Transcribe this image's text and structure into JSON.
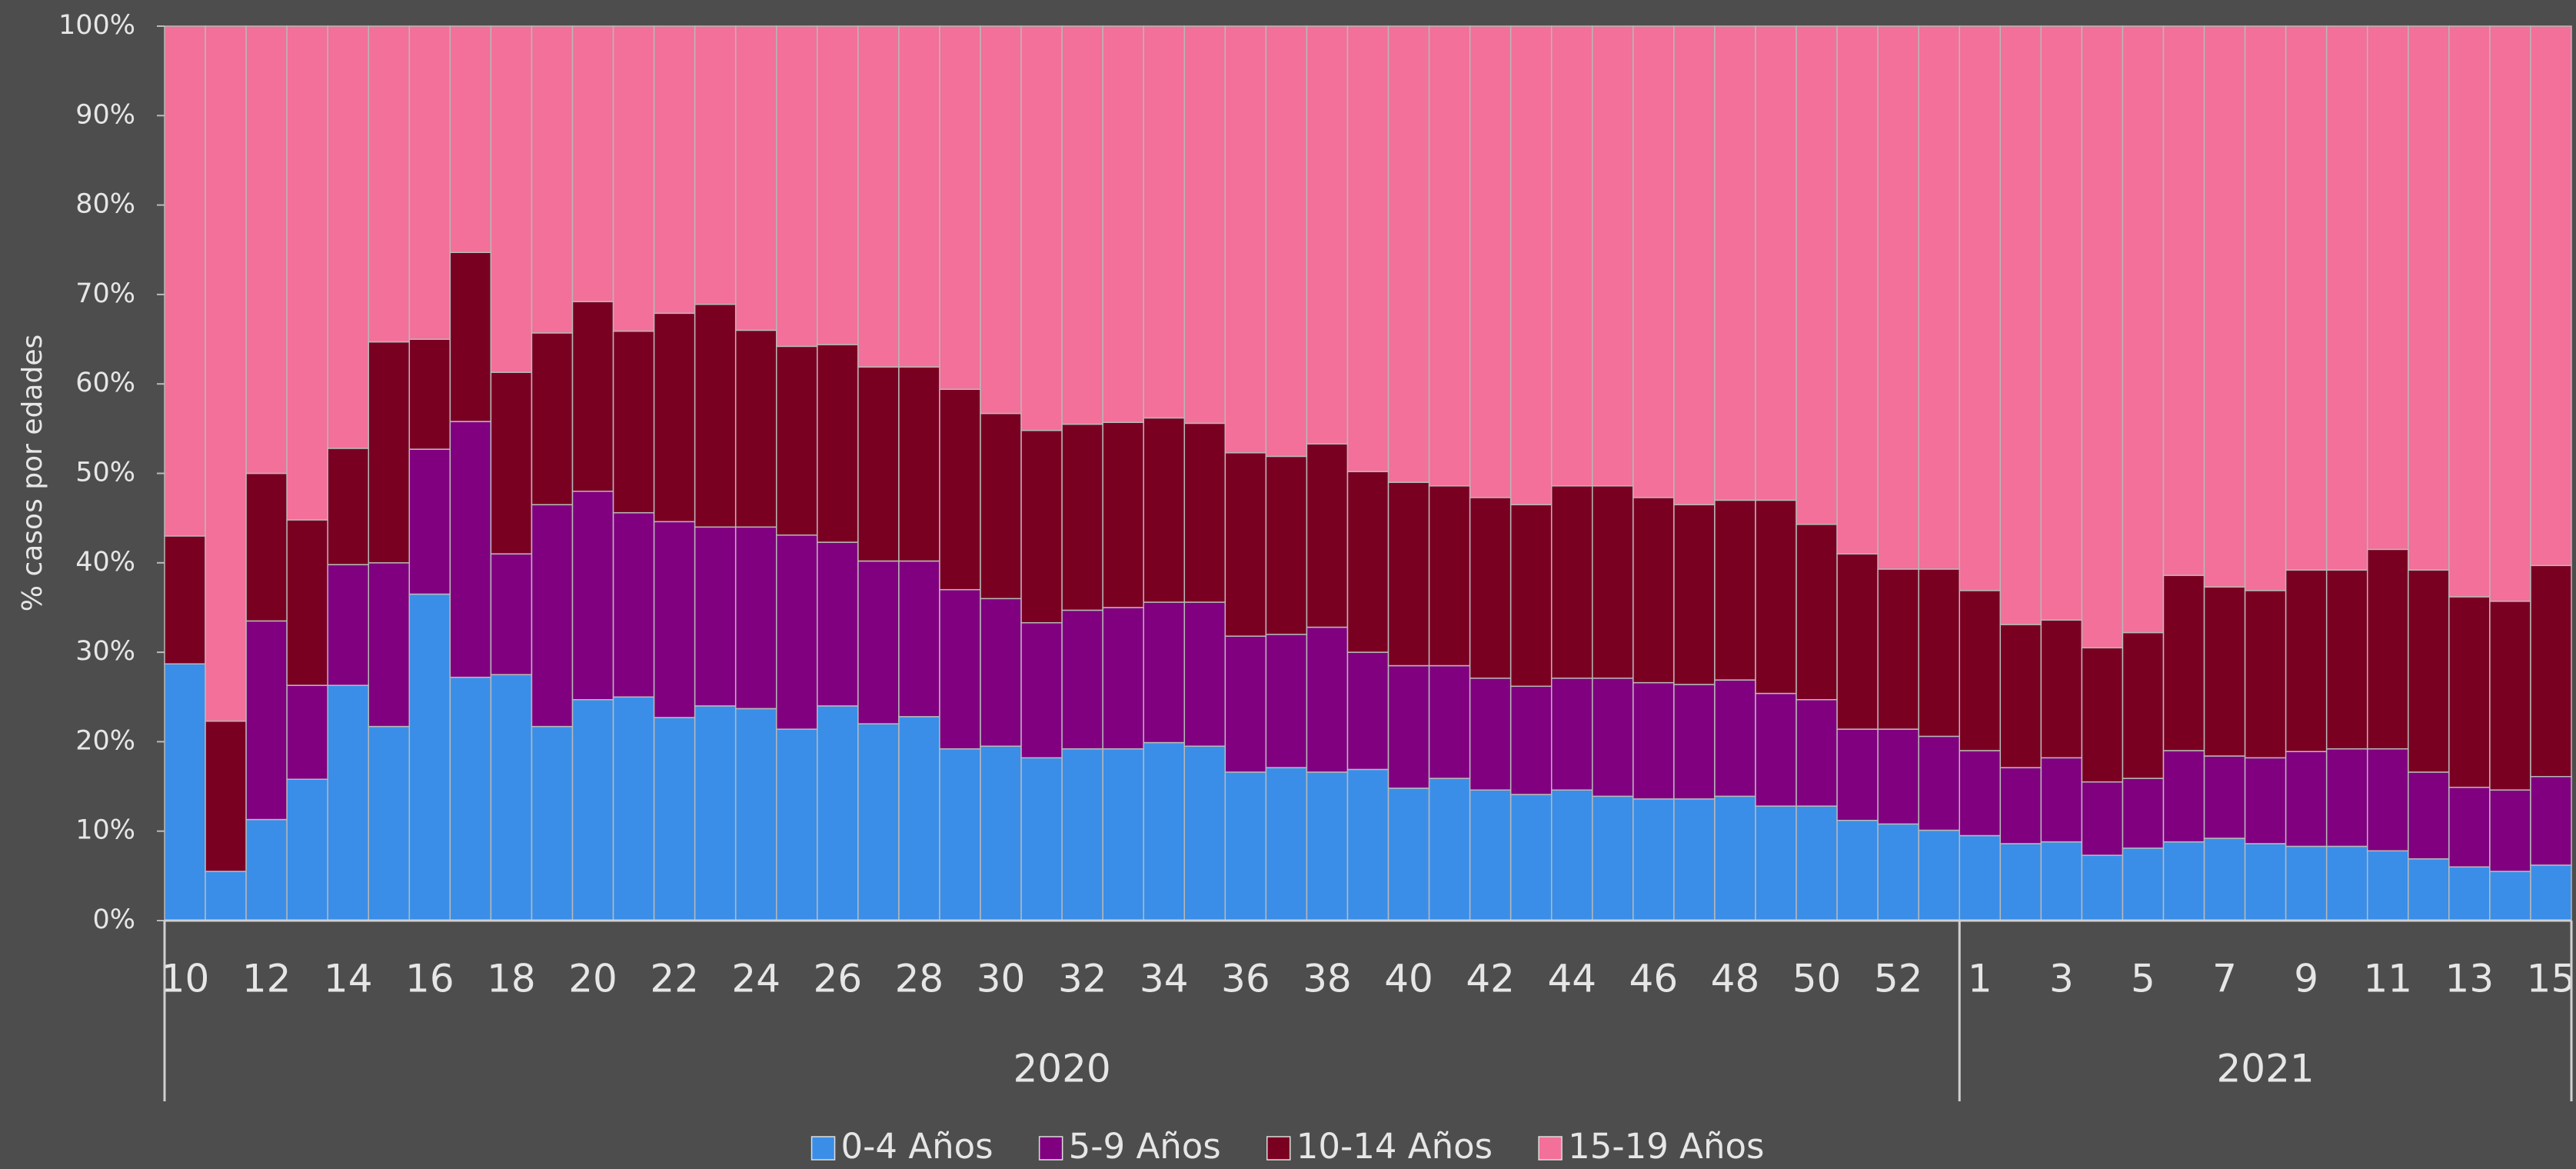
{
  "chart_data": {
    "type": "stacked_bar",
    "ylabel": "% casos por edades",
    "categories": [
      "10",
      null,
      "12",
      null,
      "14",
      null,
      "16",
      null,
      "18",
      null,
      "20",
      null,
      "22",
      null,
      "24",
      null,
      "26",
      null,
      "28",
      null,
      "30",
      null,
      "32",
      null,
      "34",
      null,
      "36",
      null,
      "38",
      null,
      "40",
      null,
      "42",
      null,
      "44",
      null,
      "46",
      null,
      "48",
      null,
      "50",
      null,
      "52",
      null,
      "1",
      null,
      "3",
      null,
      "5",
      null,
      "7",
      null,
      "9",
      null,
      "11",
      null,
      "13",
      null,
      "15"
    ],
    "groups": [
      {
        "label": "2020",
        "count": 44
      },
      {
        "label": "2021",
        "count": 15
      }
    ],
    "series": [
      {
        "name": "0-4 Años",
        "color": "#3a8ee8",
        "values": [
          28.7,
          5.5,
          11.3,
          15.8,
          26.3,
          21.7,
          36.5,
          27.2,
          27.5,
          21.7,
          24.7,
          25,
          22.7,
          24,
          23.7,
          21.4,
          24,
          22,
          22.8,
          19.2,
          19.5,
          18.2,
          19.2,
          19.2,
          19.9,
          19.5,
          16.6,
          17.1,
          16.6,
          16.9,
          14.8,
          15.9,
          14.6,
          14.1,
          14.6,
          13.9,
          13.6,
          13.6,
          13.9,
          12.8,
          12.8,
          11.2,
          10.8,
          10.1,
          9.5,
          8.6,
          8.8,
          7.3,
          8.1,
          8.8,
          9.2,
          8.6,
          8.3,
          8.3,
          7.8,
          6.9,
          6,
          5.5,
          6.2
        ]
      },
      {
        "name": "5-9 Años",
        "color": "#800080",
        "values": [
          0,
          0,
          22.2,
          10.5,
          13.5,
          18.3,
          16.2,
          28.6,
          13.5,
          24.8,
          23.3,
          20.6,
          21.9,
          20,
          20.3,
          21.7,
          18.3,
          18.2,
          17.4,
          17.8,
          16.5,
          15.1,
          15.5,
          15.8,
          15.7,
          16.1,
          15.2,
          14.9,
          16.2,
          13.1,
          13.7,
          12.6,
          12.5,
          12.1,
          12.5,
          13.2,
          13,
          12.8,
          13,
          12.6,
          11.9,
          10.2,
          10.6,
          10.5,
          9.5,
          8.5,
          9.4,
          8.2,
          7.8,
          10.2,
          9.2,
          9.6,
          10.6,
          10.9,
          11.4,
          9.7,
          8.9,
          9.1,
          9.9
        ]
      },
      {
        "name": "10-14 Años",
        "color": "#7a0022",
        "values": [
          14.3,
          16.8,
          16.5,
          18.5,
          13,
          24.7,
          12.3,
          18.9,
          20.3,
          19.2,
          21.2,
          20.3,
          23.3,
          24.9,
          22,
          21.1,
          22.1,
          21.7,
          21.7,
          22.4,
          20.7,
          21.5,
          20.8,
          20.7,
          20.6,
          20,
          20.5,
          19.9,
          20.5,
          20.2,
          20.5,
          20.1,
          20.2,
          20.3,
          21.5,
          21.5,
          20.7,
          20.1,
          20.1,
          21.6,
          19.6,
          19.6,
          17.9,
          18.7,
          17.9,
          16,
          15.4,
          15,
          16.3,
          19.6,
          18.9,
          18.7,
          20.3,
          20,
          22.3,
          22.6,
          21.3,
          21.1,
          23.6
        ]
      },
      {
        "name": "15-19 Años",
        "color": "#f27099",
        "values": [
          57,
          77.7,
          50,
          55.2,
          47.2,
          35.3,
          35,
          25.3,
          38.7,
          34.3,
          30.8,
          34.1,
          32.1,
          31.1,
          34,
          35.8,
          35.6,
          38.1,
          38.1,
          40.6,
          43.3,
          45.2,
          44.5,
          44.3,
          43.8,
          44.4,
          47.7,
          48.1,
          46.7,
          49.8,
          51,
          51.4,
          52.7,
          53.5,
          51.4,
          51.4,
          52.7,
          53.5,
          53,
          53,
          55.7,
          59,
          60.7,
          60.7,
          63.1,
          66.9,
          66.4,
          69.5,
          67.8,
          61.4,
          62.7,
          63.1,
          60.8,
          60.8,
          58.5,
          60.8,
          63.8,
          64.3,
          60.3
        ]
      }
    ],
    "ylim": [
      0,
      100
    ],
    "yticks": [
      {
        "value": 0,
        "label": "0%"
      },
      {
        "value": 10,
        "label": "10%"
      },
      {
        "value": 20,
        "label": "20%"
      },
      {
        "value": 30,
        "label": "30%"
      },
      {
        "value": 40,
        "label": "40%"
      },
      {
        "value": 50,
        "label": "50%"
      },
      {
        "value": 60,
        "label": "60%"
      },
      {
        "value": 70,
        "label": "70%"
      },
      {
        "value": 80,
        "label": "80%"
      },
      {
        "value": 90,
        "label": "90%"
      },
      {
        "value": 100,
        "label": "100%"
      }
    ],
    "legend": "bottom"
  }
}
